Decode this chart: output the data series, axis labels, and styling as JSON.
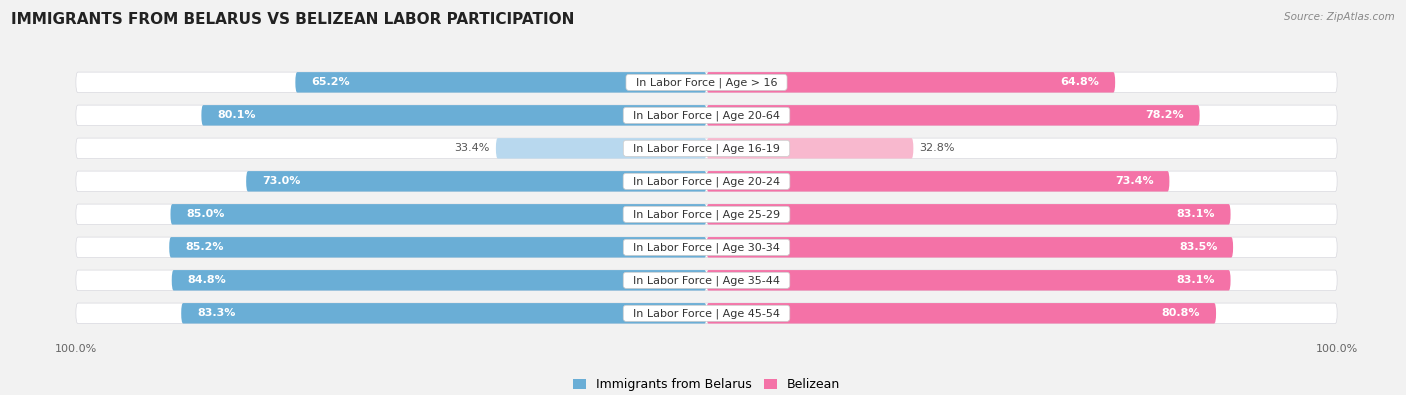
{
  "title": "IMMIGRANTS FROM BELARUS VS BELIZEAN LABOR PARTICIPATION",
  "source": "Source: ZipAtlas.com",
  "categories": [
    "In Labor Force | Age > 16",
    "In Labor Force | Age 20-64",
    "In Labor Force | Age 16-19",
    "In Labor Force | Age 20-24",
    "In Labor Force | Age 25-29",
    "In Labor Force | Age 30-34",
    "In Labor Force | Age 35-44",
    "In Labor Force | Age 45-54"
  ],
  "belarus_values": [
    65.2,
    80.1,
    33.4,
    73.0,
    85.0,
    85.2,
    84.8,
    83.3
  ],
  "belizean_values": [
    64.8,
    78.2,
    32.8,
    73.4,
    83.1,
    83.5,
    83.1,
    80.8
  ],
  "belarus_color": "#6aaed6",
  "belizean_color": "#f472a7",
  "belarus_color_light": "#b8d8ee",
  "belizean_color_light": "#f8b8ce",
  "background_color": "#f2f2f2",
  "bar_background": "#e8e8ec",
  "bar_bg_border": "#d8d8de",
  "max_value": 100.0,
  "label_fontsize": 8.0,
  "title_fontsize": 11,
  "legend_fontsize": 9,
  "bar_height": 0.62,
  "legend_labels": [
    "Immigrants from Belarus",
    "Belizean"
  ],
  "light_threshold": 50
}
